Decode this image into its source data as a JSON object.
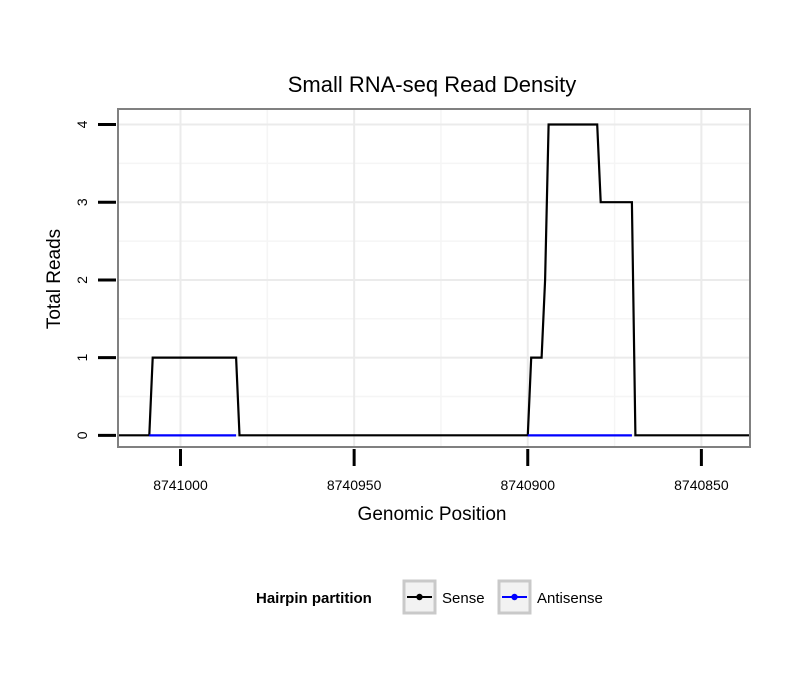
{
  "chart_data": {
    "type": "line",
    "title": "Small RNA-seq Read Density",
    "xlabel": "Genomic Position",
    "ylabel": "Total Reads",
    "xlim": [
      8741018,
      8740836
    ],
    "ylim": [
      -0.15,
      4.2
    ],
    "x_reversed": true,
    "xticks": [
      8741000,
      8740950,
      8740900,
      8740850
    ],
    "xtick_labels": [
      "8741000",
      "8740950",
      "8740900",
      "8740850"
    ],
    "yticks": [
      0,
      1,
      2,
      3,
      4
    ],
    "ytick_labels": [
      "0",
      "1",
      "2",
      "3",
      "4"
    ],
    "grid": true,
    "series": [
      {
        "name": "Sense",
        "color": "#000000",
        "x": [
          8741018,
          8741009,
          8741008,
          8740984,
          8740983,
          8740900,
          8740899,
          8740896,
          8740895,
          8740894,
          8740892,
          8740880,
          8740879,
          8740875,
          8740874,
          8740870,
          8740869,
          8740836
        ],
        "y": [
          0,
          0,
          1,
          1,
          0,
          0,
          1,
          1,
          2,
          4,
          4,
          4,
          3,
          3,
          3,
          3,
          0,
          0
        ]
      },
      {
        "name": "Antisense",
        "color": "#0000ff",
        "x": [
          8741009,
          8740984
        ],
        "y": [
          0,
          0
        ],
        "segments": [
          [
            8741009,
            8740984
          ],
          [
            8740900,
            8740870
          ]
        ]
      }
    ],
    "legend": {
      "title": "Hairpin partition",
      "position": "bottom",
      "entries": [
        "Sense",
        "Antisense"
      ]
    }
  }
}
